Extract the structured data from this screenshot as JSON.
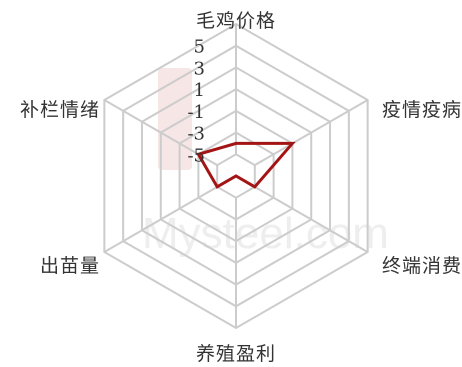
{
  "chart_data": {
    "type": "radar",
    "title": "",
    "axes": [
      "毛鸡价格",
      "疫情疫病",
      "终端消费",
      "养殖盈利",
      "出苗量",
      "补栏情绪"
    ],
    "range": [
      -7,
      7
    ],
    "ticks": [
      5,
      3,
      1,
      -1,
      -3,
      -5
    ],
    "grid": true,
    "series": [
      {
        "values": [
          -4,
          -1,
          -5,
          -7,
          -5,
          -3
        ],
        "color": "#a31515"
      }
    ]
  },
  "watermark": {
    "text": "Mysteel.com",
    "logo_glyph": "钢"
  }
}
